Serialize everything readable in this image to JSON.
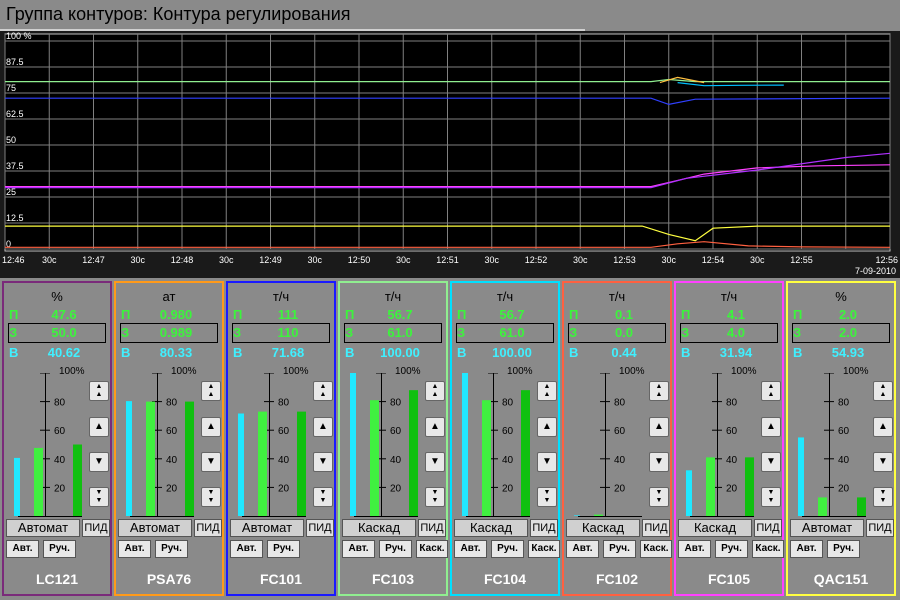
{
  "window": {
    "title": "Группа контуров: Контура регулирования"
  },
  "chart_data": {
    "type": "line",
    "y_tick_labels": [
      "100 %",
      "87.5",
      "75",
      "62.5",
      "50",
      "37.5",
      "25",
      "12.5",
      "0"
    ],
    "y_ticks": [
      100,
      87.5,
      75,
      62.5,
      50,
      37.5,
      25,
      12.5,
      0
    ],
    "ylim": [
      0,
      100
    ],
    "x_tick_labels": [
      "12:46",
      "30c",
      "12:47",
      "30c",
      "12:48",
      "30c",
      "12:49",
      "30c",
      "12:50",
      "30c",
      "12:51",
      "30c",
      "12:52",
      "30c",
      "12:53",
      "30c",
      "12:54",
      "30c",
      "12:55",
      "12:56"
    ],
    "date_label": "7-09-2010",
    "xlim_minutes": [
      0,
      10
    ],
    "grid": true,
    "series": [
      {
        "color": "#90ee90",
        "points": [
          [
            0,
            80.5
          ],
          [
            7.3,
            80.5
          ],
          [
            7.5,
            81.5
          ],
          [
            7.8,
            80.5
          ],
          [
            10,
            80.5
          ]
        ]
      },
      {
        "color": "#00c0ff",
        "points": [
          [
            7.6,
            80
          ],
          [
            7.9,
            78.5
          ],
          [
            8.3,
            78.7
          ],
          [
            8.8,
            78.8
          ]
        ]
      },
      {
        "color": "#ffc040",
        "points": [
          [
            7.4,
            80
          ],
          [
            7.6,
            82.5
          ],
          [
            7.9,
            80
          ]
        ]
      },
      {
        "color": "#3040ff",
        "points": [
          [
            0,
            72.5
          ],
          [
            7.3,
            72.5
          ],
          [
            7.5,
            69.5
          ],
          [
            7.8,
            72
          ],
          [
            10,
            72.5
          ]
        ]
      },
      {
        "color": "#ff40ff",
        "points": [
          [
            0,
            30
          ],
          [
            7.3,
            30
          ],
          [
            7.6,
            33
          ],
          [
            7.9,
            36
          ],
          [
            8.5,
            39
          ],
          [
            9.2,
            40
          ],
          [
            10,
            40.5
          ]
        ]
      },
      {
        "color": "#b030ff",
        "points": [
          [
            0,
            29.5
          ],
          [
            7.3,
            29.5
          ],
          [
            7.7,
            34
          ],
          [
            8.5,
            38
          ],
          [
            9.5,
            44
          ],
          [
            10,
            46
          ]
        ]
      },
      {
        "color": "#ffff40",
        "points": [
          [
            0,
            11
          ],
          [
            7.2,
            11
          ],
          [
            7.5,
            7
          ],
          [
            7.8,
            4
          ],
          [
            8.0,
            10
          ],
          [
            8.5,
            11
          ],
          [
            10,
            11
          ]
        ]
      },
      {
        "color": "#ff6040",
        "points": [
          [
            0,
            0.8
          ],
          [
            7.3,
            0.8
          ],
          [
            7.6,
            2.5
          ],
          [
            7.9,
            3.5
          ],
          [
            8.4,
            1.5
          ],
          [
            9,
            1
          ],
          [
            10,
            0.8
          ]
        ]
      }
    ]
  },
  "bar_scale_labels": [
    "100%",
    "80",
    "60",
    "40",
    "20"
  ],
  "panels": [
    {
      "tag": "LC121",
      "unit": "%",
      "p_label": "П",
      "p_value": "47.6",
      "s_label": "З",
      "s_value": "50.0",
      "b_label": "В",
      "b_value": "40.62",
      "bar_b": 40.62,
      "bar_p": 47.6,
      "bar_s": 50.0,
      "mode": "Автомат",
      "pid": "ПИД",
      "buttons": [
        "Авт.",
        "Руч."
      ],
      "border": "#7a2a7a"
    },
    {
      "tag": "PSA76",
      "unit": "ат",
      "p_label": "П",
      "p_value": "0.980",
      "s_label": "З",
      "s_value": "0.989",
      "b_label": "В",
      "b_value": "80.33",
      "bar_b": 80.33,
      "bar_p": 80,
      "bar_s": 80,
      "mode": "Автомат",
      "pid": "ПИД",
      "buttons": [
        "Авт.",
        "Руч."
      ],
      "border": "#ff9a1a"
    },
    {
      "tag": "FC101",
      "unit": "т/ч",
      "p_label": "П",
      "p_value": "111",
      "s_label": "З",
      "s_value": "110",
      "b_label": "В",
      "b_value": "71.68",
      "bar_b": 71.68,
      "bar_p": 73,
      "bar_s": 73,
      "mode": "Автомат",
      "pid": "ПИД",
      "buttons": [
        "Авт.",
        "Руч."
      ],
      "border": "#1a1aff"
    },
    {
      "tag": "FC103",
      "unit": "т/ч",
      "p_label": "П",
      "p_value": "56.7",
      "s_label": "З",
      "s_value": "61.0",
      "b_label": "В",
      "b_value": "100.00",
      "bar_b": 100,
      "bar_p": 81,
      "bar_s": 88,
      "mode": "Каскад",
      "pid": "ПИД",
      "buttons": [
        "Авт.",
        "Руч.",
        "Каск."
      ],
      "border": "#90ee90"
    },
    {
      "tag": "FC104",
      "unit": "т/ч",
      "p_label": "П",
      "p_value": "56.7",
      "s_label": "З",
      "s_value": "61.0",
      "b_label": "В",
      "b_value": "100.00",
      "bar_b": 100,
      "bar_p": 81,
      "bar_s": 88,
      "mode": "Каскад",
      "pid": "ПИД",
      "buttons": [
        "Авт.",
        "Руч.",
        "Каск."
      ],
      "border": "#00e0ff"
    },
    {
      "tag": "FC102",
      "unit": "т/ч",
      "p_label": "П",
      "p_value": "0.1",
      "s_label": "З",
      "s_value": "0.0",
      "b_label": "В",
      "b_value": "0.44",
      "bar_b": 0.44,
      "bar_p": 1,
      "bar_s": 0,
      "mode": "Каскад",
      "pid": "ПИД",
      "buttons": [
        "Авт.",
        "Руч.",
        "Каск."
      ],
      "border": "#ff6040"
    },
    {
      "tag": "FC105",
      "unit": "т/ч",
      "p_label": "П",
      "p_value": "4.1",
      "s_label": "З",
      "s_value": "4.0",
      "b_label": "В",
      "b_value": "31.94",
      "bar_b": 31.94,
      "bar_p": 41,
      "bar_s": 41,
      "mode": "Каскад",
      "pid": "ПИД",
      "buttons": [
        "Авт.",
        "Руч.",
        "Каск."
      ],
      "border": "#ff40ff"
    },
    {
      "tag": "QAC151",
      "unit": "%",
      "p_label": "П",
      "p_value": "2.0",
      "s_label": "З",
      "s_value": "2.0",
      "b_label": "В",
      "b_value": "54.93",
      "bar_b": 54.93,
      "bar_p": 13,
      "bar_s": 13,
      "mode": "Автомат",
      "pid": "ПИД",
      "buttons": [
        "Авт.",
        "Руч."
      ],
      "border": "#ffff40"
    }
  ],
  "step_icons": [
    "double-up-arrow-icon",
    "up-arrow-icon",
    "down-arrow-icon",
    "double-down-arrow-icon"
  ]
}
